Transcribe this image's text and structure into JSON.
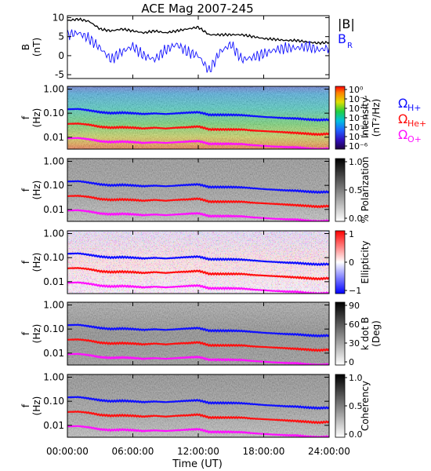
{
  "figure": {
    "title": "ACE Mag 2007-245"
  },
  "colors": {
    "black": "#000000",
    "blue": "#1010ff",
    "red": "#ff1010",
    "magenta": "#ff10ff"
  },
  "chart_data": [
    {
      "type": "line",
      "id": "mag",
      "ylabel": [
        "B",
        "(nT)"
      ],
      "ylim": [
        -6,
        10.5
      ],
      "yticks": [
        "10",
        "5",
        "0",
        "-5"
      ],
      "ytick_values": [
        10,
        5,
        0,
        -5
      ],
      "x_hours": [
        0,
        1,
        2,
        3,
        4,
        5,
        6,
        7,
        8,
        9,
        10,
        11,
        12,
        13,
        14,
        15,
        16,
        17,
        18,
        19,
        20,
        21,
        22,
        23,
        24
      ],
      "series": [
        {
          "name": "|B|",
          "color": "#000000",
          "values": [
            9.2,
            9.6,
            9.0,
            7.0,
            6.5,
            7.0,
            6.5,
            6.0,
            6.5,
            6.0,
            6.5,
            7.0,
            7.5,
            5.5,
            5.5,
            5.5,
            5.5,
            5.0,
            4.5,
            4.3,
            4.0,
            4.0,
            3.6,
            3.3,
            3.5
          ]
        },
        {
          "name": "BR",
          "color": "#1010ff",
          "values": [
            5.5,
            6.0,
            4.5,
            2.0,
            -1.0,
            1.0,
            2.5,
            0.0,
            -1.0,
            1.5,
            3.0,
            1.0,
            0.0,
            -4.0,
            1.0,
            3.0,
            -1.0,
            -0.5,
            0.5,
            1.5,
            2.0,
            2.0,
            2.5,
            1.5,
            2.0
          ]
        }
      ]
    },
    {
      "type": "heatmap",
      "id": "power",
      "ylabel": [
        "f",
        "(Hz)"
      ],
      "yticks": [
        "1.00",
        "0.10",
        "0.01"
      ],
      "colorbar": {
        "label": [
          "Intensity",
          "(nT²/Hz)"
        ],
        "ticks": [
          "10⁰",
          "10⁻¹",
          "10⁻²",
          "10⁻³",
          "10⁻⁴",
          "10⁻⁵",
          "10⁻⁶"
        ],
        "scale": "rainbow"
      }
    },
    {
      "type": "heatmap",
      "id": "polarization",
      "ylabel": [
        "f",
        "(Hz)"
      ],
      "yticks": [
        "1.00",
        "0.10",
        "0.01"
      ],
      "colorbar": {
        "label": [
          "% Polarization"
        ],
        "ticks": [
          "1.0",
          "0.5",
          "0.0"
        ],
        "scale": "gray"
      }
    },
    {
      "type": "heatmap",
      "id": "ellipticity",
      "ylabel": [
        "f",
        "(Hz)"
      ],
      "yticks": [
        "1.00",
        "0.10",
        "0.01"
      ],
      "colorbar": {
        "label": [
          "Ellipticity"
        ],
        "ticks": [
          "1",
          "0",
          "−1"
        ],
        "scale": "bluewhitered"
      }
    },
    {
      "type": "heatmap",
      "id": "kdotb",
      "ylabel": [
        "f",
        "(Hz)"
      ],
      "yticks": [
        "1.00",
        "0.10",
        "0.01"
      ],
      "colorbar": {
        "label": [
          "k dot B",
          "(Deg)"
        ],
        "ticks": [
          "90",
          "60",
          "30",
          "0"
        ],
        "scale": "gray"
      }
    },
    {
      "type": "heatmap",
      "id": "coherency",
      "ylabel": [
        "f",
        "(Hz)"
      ],
      "yticks": [
        "1.00",
        "0.10",
        "0.01"
      ],
      "colorbar": {
        "label": [
          "Coherency"
        ],
        "ticks": [
          "1.0",
          "0.5",
          "0.0"
        ],
        "scale": "gray"
      }
    }
  ],
  "gyrofrequencies": {
    "x_hours": [
      0,
      1,
      2,
      3,
      4,
      5,
      6,
      7,
      8,
      9,
      10,
      11,
      12,
      13,
      14,
      15,
      16,
      17,
      18,
      19,
      20,
      21,
      22,
      23,
      24
    ],
    "H+": {
      "color": "#1010ff",
      "values": [
        0.145,
        0.15,
        0.13,
        0.11,
        0.1,
        0.105,
        0.1,
        0.092,
        0.098,
        0.092,
        0.098,
        0.105,
        0.11,
        0.085,
        0.085,
        0.085,
        0.083,
        0.076,
        0.07,
        0.066,
        0.062,
        0.06,
        0.055,
        0.052,
        0.054
      ]
    },
    "He+": {
      "color": "#ff1010",
      "values": [
        0.036,
        0.037,
        0.033,
        0.027,
        0.025,
        0.026,
        0.025,
        0.023,
        0.025,
        0.023,
        0.025,
        0.026,
        0.028,
        0.021,
        0.021,
        0.021,
        0.021,
        0.019,
        0.018,
        0.017,
        0.016,
        0.015,
        0.014,
        0.013,
        0.014
      ]
    },
    "O+": {
      "color": "#ff10ff",
      "values": [
        0.009,
        0.0093,
        0.0082,
        0.0068,
        0.0063,
        0.0066,
        0.0063,
        0.0058,
        0.0062,
        0.0058,
        0.0062,
        0.0066,
        0.0069,
        0.0053,
        0.0053,
        0.0053,
        0.0052,
        0.0047,
        0.0044,
        0.0041,
        0.0039,
        0.0038,
        0.0034,
        0.0032,
        0.0034
      ]
    }
  },
  "legend": {
    "mag": [
      "|B|",
      "B",
      "R"
    ],
    "ions": [
      {
        "label": "Ω",
        "sub": "H+"
      },
      {
        "label": "Ω",
        "sub": "He+"
      },
      {
        "label": "Ω",
        "sub": "O+"
      }
    ]
  },
  "xaxis": {
    "label": "Time (UT)",
    "ticks": [
      "00:00:00",
      "06:00:00",
      "12:00:00",
      "18:00:00",
      "24:00:00"
    ],
    "tick_hours": [
      0,
      6,
      12,
      18,
      24
    ]
  }
}
